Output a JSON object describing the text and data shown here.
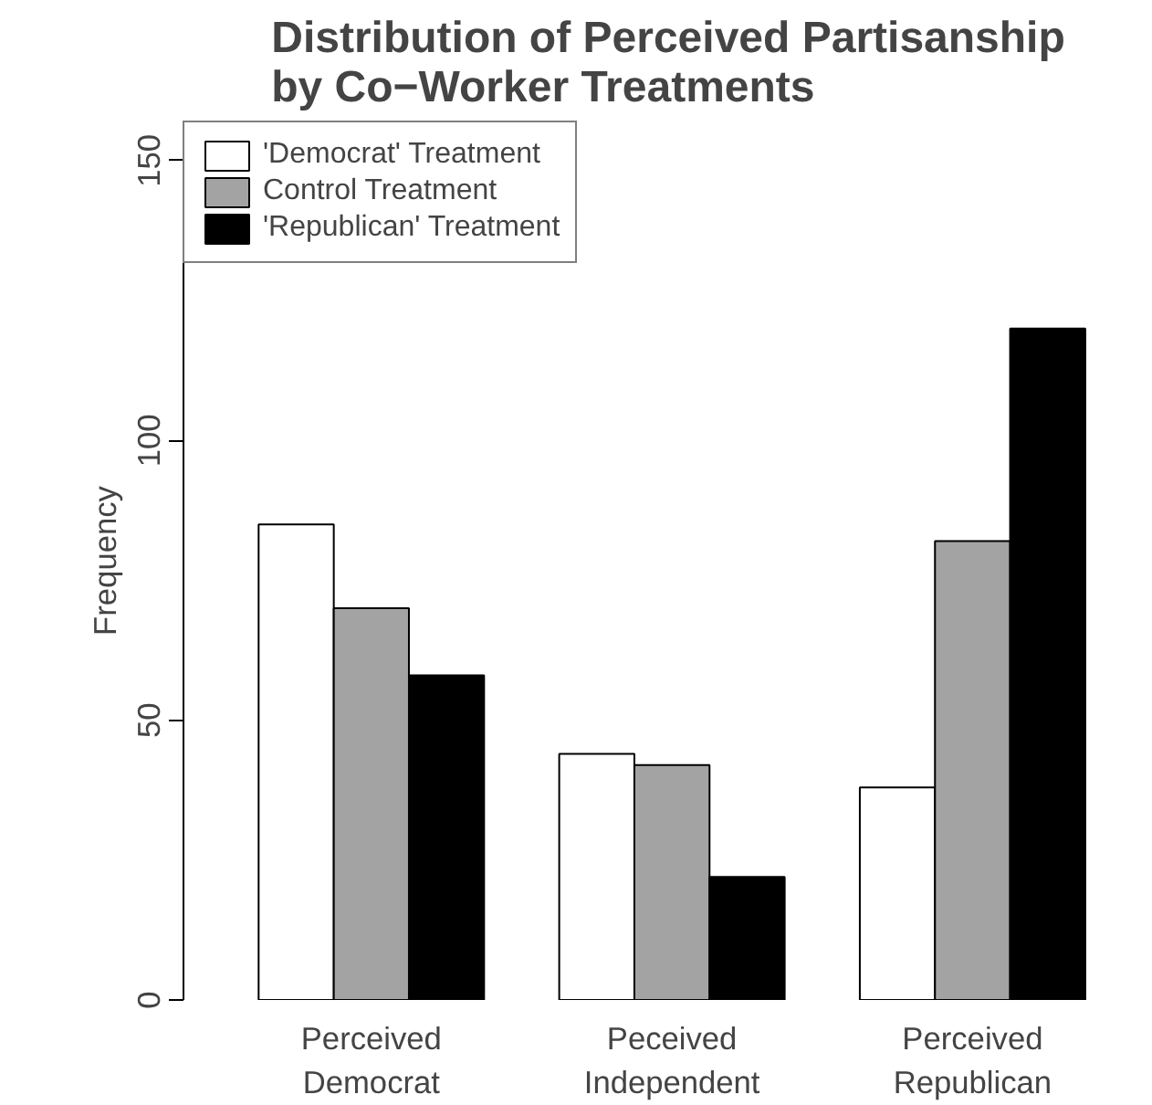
{
  "chart_data": {
    "type": "bar",
    "title": "Distribution of Perceived Partisanship\nby Co−Worker Treatments",
    "ylabel": "Frequency",
    "categories": [
      "Perceived\nDemocrat",
      "Peceived\nIndependent",
      "Perceived\nRepublican"
    ],
    "series": [
      {
        "name": "'Democrat' Treatment",
        "color": "#ffffff",
        "values": [
          85,
          44,
          38
        ]
      },
      {
        "name": "Control Treatment",
        "color": "#a3a3a3",
        "values": [
          70,
          42,
          82
        ]
      },
      {
        "name": "'Republican' Treatment",
        "color": "#000000",
        "values": [
          58,
          22,
          120
        ]
      }
    ],
    "ylim": [
      0,
      157
    ],
    "yticks": [
      0,
      50,
      100,
      150
    ],
    "grid": false,
    "legend": "top left"
  }
}
